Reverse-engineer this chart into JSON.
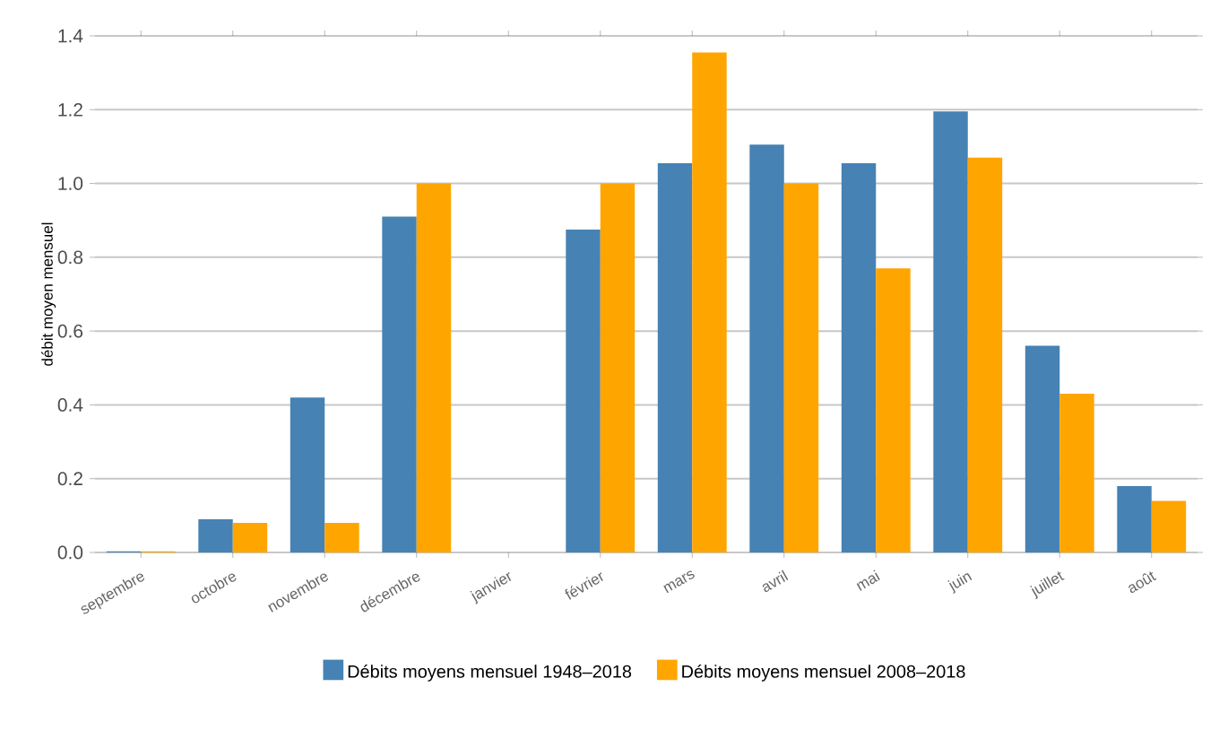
{
  "chart_data": {
    "type": "bar",
    "ylabel": "débit moyen mensuel",
    "categories": [
      "septembre",
      "octobre",
      "novembre",
      "décembre",
      "janvier",
      "février",
      "mars",
      "avril",
      "mai",
      "juin",
      "juillet",
      "août"
    ],
    "series": [
      {
        "name": "Débits moyens mensuel 1948–2018",
        "color": "#4682b4",
        "values": [
          0.003,
          0.09,
          0.42,
          0.91,
          null,
          0.875,
          1.055,
          1.105,
          1.055,
          1.195,
          0.56,
          0.18
        ]
      },
      {
        "name": "Débits moyens mensuel 2008–2018",
        "color": "#ffa500",
        "values": [
          0.003,
          0.08,
          0.08,
          1.0,
          null,
          1.0,
          1.355,
          1.0,
          0.77,
          1.07,
          0.43,
          0.14
        ]
      }
    ],
    "ylim": [
      0,
      1.4
    ],
    "yticks": [
      {
        "value": 0,
        "label": "0.0"
      },
      0.2,
      0.4,
      0.6,
      0.8,
      {
        "value": 1,
        "label": "1.0"
      },
      1.2,
      1.4
    ],
    "grid": "y",
    "legend": "bottom"
  }
}
